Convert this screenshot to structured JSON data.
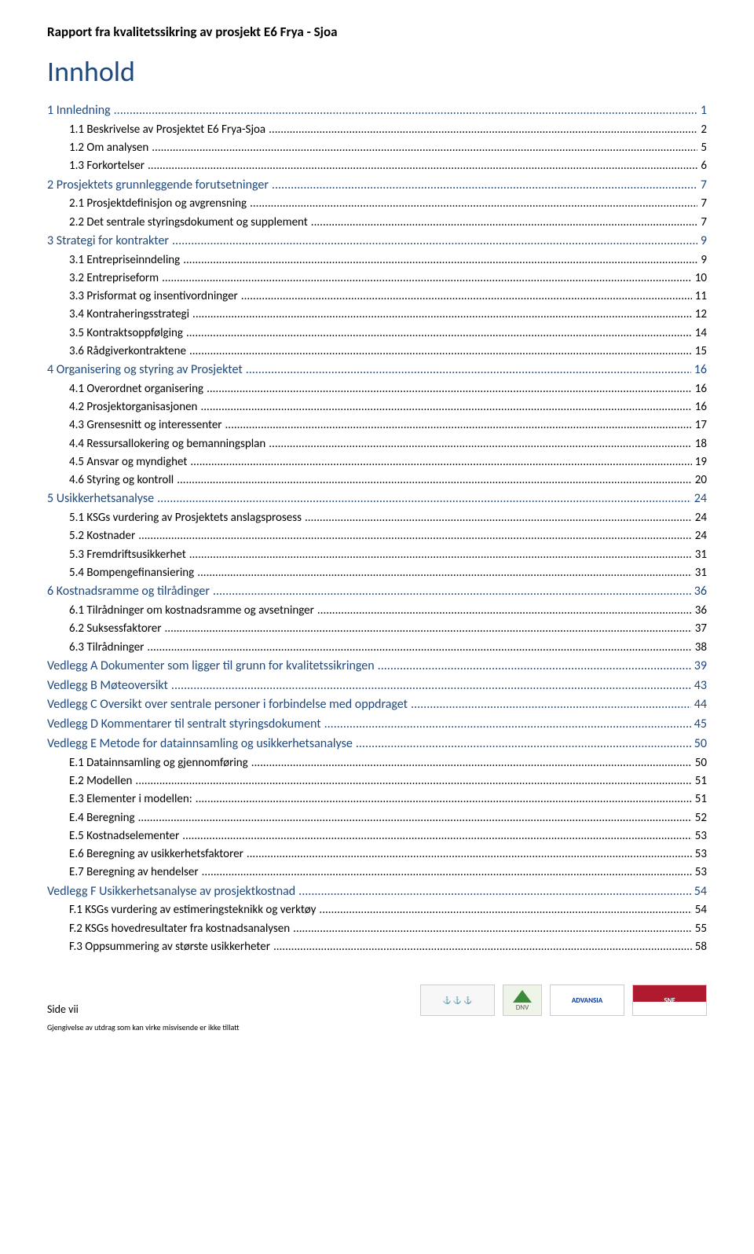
{
  "header": {
    "report_title": "Rapport fra kvalitetssikring av prosjekt E6 Frya - Sjoa"
  },
  "toc": {
    "title": "Innhold",
    "colors": {
      "heading": "#1f497d",
      "body": "#000000"
    },
    "entries": [
      {
        "level": 0,
        "label": "1 Innledning",
        "page": "1"
      },
      {
        "level": 1,
        "label": "1.1 Beskrivelse av Prosjektet E6 Frya-Sjoa",
        "page": "2"
      },
      {
        "level": 1,
        "label": "1.2 Om analysen",
        "page": "5"
      },
      {
        "level": 1,
        "label": "1.3 Forkortelser",
        "page": "6"
      },
      {
        "level": 0,
        "label": "2 Prosjektets grunnleggende forutsetninger",
        "page": "7"
      },
      {
        "level": 1,
        "label": "2.1 Prosjektdefinisjon og avgrensning",
        "page": "7"
      },
      {
        "level": 1,
        "label": "2.2 Det sentrale styringsdokument og supplement",
        "page": "7"
      },
      {
        "level": 0,
        "label": "3 Strategi for kontrakter",
        "page": "9"
      },
      {
        "level": 1,
        "label": "3.1 Entrepriseinndeling",
        "page": "9"
      },
      {
        "level": 1,
        "label": "3.2 Entrepriseform",
        "page": "10"
      },
      {
        "level": 1,
        "label": "3.3 Prisformat og insentivordninger",
        "page": "11"
      },
      {
        "level": 1,
        "label": "3.4 Kontraheringsstrategi",
        "page": "12"
      },
      {
        "level": 1,
        "label": "3.5 Kontraktsoppfølging",
        "page": "14"
      },
      {
        "level": 1,
        "label": "3.6 Rådgiverkontraktene",
        "page": "15"
      },
      {
        "level": 0,
        "label": "4 Organisering og styring av Prosjektet",
        "page": "16"
      },
      {
        "level": 1,
        "label": "4.1 Overordnet organisering",
        "page": "16"
      },
      {
        "level": 1,
        "label": "4.2 Prosjektorganisasjonen",
        "page": "16"
      },
      {
        "level": 1,
        "label": "4.3 Grensesnitt og interessenter",
        "page": "17"
      },
      {
        "level": 1,
        "label": "4.4 Ressursallokering og bemanningsplan",
        "page": "18"
      },
      {
        "level": 1,
        "label": "4.5 Ansvar og myndighet",
        "page": "19"
      },
      {
        "level": 1,
        "label": "4.6 Styring og kontroll",
        "page": "20"
      },
      {
        "level": 0,
        "label": "5 Usikkerhetsanalyse",
        "page": "24"
      },
      {
        "level": 1,
        "label": "5.1 KSGs vurdering av Prosjektets anslagsprosess",
        "page": "24"
      },
      {
        "level": 1,
        "label": "5.2 Kostnader",
        "page": "24"
      },
      {
        "level": 1,
        "label": "5.3 Fremdriftsusikkerhet",
        "page": "31"
      },
      {
        "level": 1,
        "label": "5.4 Bompengefinansiering",
        "page": "31"
      },
      {
        "level": 0,
        "label": "6 Kostnadsramme og tilrådinger",
        "page": "36"
      },
      {
        "level": 1,
        "label": "6.1 Tilrådninger om kostnadsramme og avsetninger",
        "page": "36"
      },
      {
        "level": 1,
        "label": "6.2 Suksessfaktorer",
        "page": "37"
      },
      {
        "level": 1,
        "label": "6.3 Tilrådninger",
        "page": "38"
      },
      {
        "level": 0,
        "label": "Vedlegg A Dokumenter som ligger til grunn for kvalitetssikringen",
        "page": "39"
      },
      {
        "level": 0,
        "label": "Vedlegg B Møteoversikt",
        "page": "43"
      },
      {
        "level": 0,
        "label": "Vedlegg C Oversikt over sentrale personer i forbindelse med oppdraget",
        "page": "44"
      },
      {
        "level": 0,
        "label": "Vedlegg D Kommentarer til sentralt styringsdokument",
        "page": "45"
      },
      {
        "level": 0,
        "label": "Vedlegg E Metode for datainnsamling og usikkerhetsanalyse",
        "page": "50"
      },
      {
        "level": 1,
        "label": "E.1 Datainnsamling og gjennomføring",
        "page": "50"
      },
      {
        "level": 1,
        "label": "E.2 Modellen",
        "page": "51"
      },
      {
        "level": 1,
        "label": "E.3 Elementer i modellen:",
        "page": "51"
      },
      {
        "level": 1,
        "label": "E.4 Beregning",
        "page": "52"
      },
      {
        "level": 1,
        "label": "E.5 Kostnadselementer",
        "page": "53"
      },
      {
        "level": 1,
        "label": "E.6 Beregning av usikkerhetsfaktorer",
        "page": "53"
      },
      {
        "level": 1,
        "label": "E.7 Beregning av hendelser",
        "page": "53"
      },
      {
        "level": 0,
        "label": "Vedlegg F Usikkerhetsanalyse av prosjektkostnad",
        "page": "54"
      },
      {
        "level": 1,
        "label": "F.1 KSGs vurdering av estimeringsteknikk og verktøy",
        "page": "54"
      },
      {
        "level": 1,
        "label": "F.2 KSGs hovedresultater fra kostnadsanalysen",
        "page": "55"
      },
      {
        "level": 1,
        "label": "F.3 Oppsummering av største usikkerheter",
        "page": "58"
      }
    ]
  },
  "footer": {
    "page_label": "Side vii",
    "reproduction_note": "Gjengivelse av utdrag som kan virke misvisende er ikke tillatt",
    "logos": {
      "logo1": "⚓ ⚓ ⚓",
      "logo2": "DNV",
      "logo3": "ADVANSIA",
      "logo4": "SNF"
    }
  }
}
